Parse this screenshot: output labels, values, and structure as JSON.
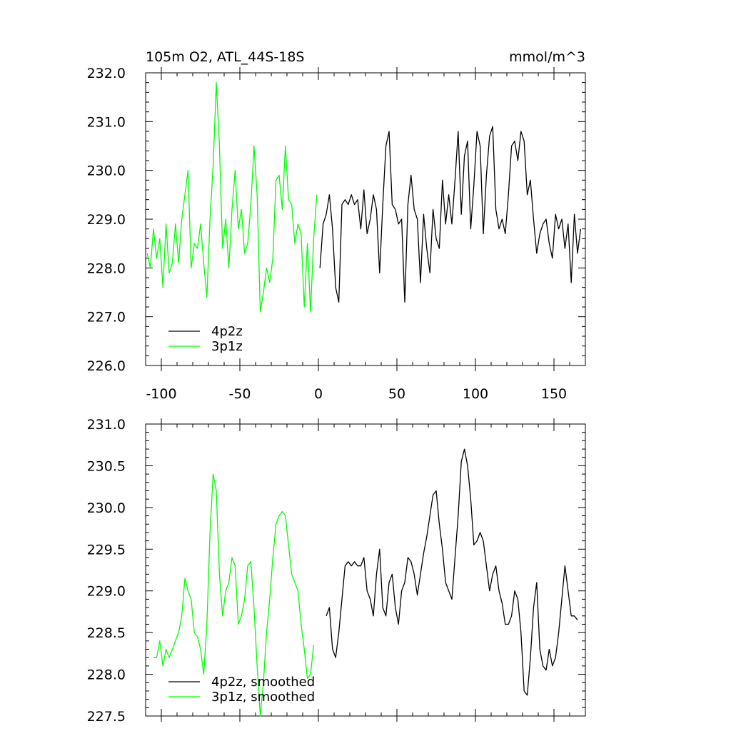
{
  "chart_data": [
    {
      "type": "line",
      "title_left": "105m O2, ATL_44S-18S",
      "title_right": "mmol/m^3",
      "xlim": [
        -110,
        170
      ],
      "ylim": [
        226.0,
        232.0
      ],
      "xticks": [
        -100,
        -50,
        0,
        50,
        100,
        150
      ],
      "xtick_labels": [
        "-100",
        "-50",
        "0",
        "50",
        "100",
        "150"
      ],
      "yticks": [
        226,
        227,
        228,
        229,
        230,
        231,
        232
      ],
      "ytick_labels": [
        "226.0",
        "227.0",
        "228.0",
        "229.0",
        "230.0",
        "231.0",
        "232.0"
      ],
      "legend_position": "bottom-left",
      "series": [
        {
          "name": "4p2z",
          "color": "#000000",
          "x": [
            1,
            3,
            5,
            7,
            9,
            11,
            13,
            15,
            17,
            19,
            21,
            23,
            25,
            27,
            29,
            31,
            33,
            35,
            37,
            39,
            41,
            43,
            45,
            47,
            49,
            51,
            53,
            55,
            57,
            59,
            61,
            63,
            65,
            67,
            69,
            71,
            73,
            75,
            77,
            79,
            81,
            83,
            85,
            87,
            89,
            91,
            93,
            95,
            97,
            99,
            101,
            103,
            105,
            107,
            109,
            111,
            113,
            115,
            117,
            119,
            121,
            123,
            125,
            127,
            129,
            131,
            133,
            135,
            137,
            139,
            141,
            143,
            145,
            147,
            149,
            151,
            153,
            155,
            157,
            159,
            161,
            163,
            165,
            167
          ],
          "values": [
            228.0,
            228.9,
            229.1,
            229.5,
            228.8,
            227.6,
            227.3,
            229.3,
            229.4,
            229.3,
            229.5,
            229.3,
            229.4,
            228.8,
            229.6,
            228.7,
            229.0,
            229.5,
            229.2,
            227.9,
            229.3,
            230.5,
            230.8,
            229.3,
            229.2,
            228.9,
            229.0,
            227.3,
            229.3,
            229.9,
            229.2,
            229.0,
            227.7,
            229.1,
            228.4,
            227.9,
            229.2,
            228.6,
            228.4,
            229.8,
            228.9,
            229.5,
            228.9,
            229.8,
            230.8,
            229.1,
            230.3,
            230.6,
            228.8,
            229.7,
            230.8,
            230.5,
            228.7,
            229.9,
            230.7,
            230.9,
            229.2,
            228.8,
            229.0,
            228.7,
            229.5,
            230.5,
            230.6,
            230.2,
            230.8,
            230.6,
            229.5,
            229.8,
            229.0,
            228.3,
            228.7,
            228.9,
            229.0,
            228.5,
            228.2,
            229.1,
            228.8,
            229.0,
            228.4,
            228.9,
            227.7,
            229.1,
            228.3,
            228.8
          ]
        },
        {
          "name": "3p1z",
          "color": "#00ff00",
          "x": [
            -109,
            -107,
            -105,
            -103,
            -101,
            -99,
            -97,
            -95,
            -93,
            -91,
            -89,
            -87,
            -85,
            -83,
            -81,
            -79,
            -77,
            -75,
            -73,
            -71,
            -69,
            -67,
            -65,
            -63,
            -61,
            -59,
            -57,
            -55,
            -53,
            -51,
            -49,
            -47,
            -45,
            -43,
            -41,
            -39,
            -37,
            -35,
            -33,
            -31,
            -29,
            -27,
            -25,
            -23,
            -21,
            -19,
            -17,
            -15,
            -13,
            -11,
            -9,
            -7,
            -5,
            -3,
            -1
          ],
          "values": [
            228.3,
            228.0,
            228.8,
            228.2,
            228.6,
            227.6,
            228.9,
            227.9,
            228.1,
            228.9,
            228.1,
            229.0,
            229.5,
            230.0,
            228.0,
            228.5,
            228.4,
            228.9,
            228.1,
            227.4,
            229.0,
            230.1,
            231.8,
            230.5,
            228.4,
            229.0,
            228.0,
            229.2,
            230.0,
            228.8,
            229.2,
            228.3,
            228.5,
            229.3,
            230.5,
            229.5,
            227.1,
            227.5,
            228.0,
            227.7,
            228.2,
            229.8,
            229.9,
            229.2,
            230.5,
            229.4,
            229.3,
            228.5,
            228.9,
            228.7,
            227.2,
            228.5,
            227.1,
            228.6,
            229.5
          ]
        }
      ]
    },
    {
      "type": "line",
      "xlim": [
        -110,
        170
      ],
      "ylim": [
        227.5,
        231.0
      ],
      "xticks": [
        -100,
        -50,
        0,
        50,
        100,
        150
      ],
      "yticks": [
        227.5,
        228.0,
        228.5,
        229.0,
        229.5,
        230.0,
        230.5,
        231.0
      ],
      "ytick_labels": [
        "227.5",
        "228.0",
        "228.5",
        "229.0",
        "229.5",
        "230.0",
        "230.5",
        "231.0"
      ],
      "legend_position": "bottom-left",
      "series": [
        {
          "name": "4p2z, smoothed",
          "color": "#000000",
          "x": [
            5,
            7,
            9,
            11,
            13,
            15,
            17,
            19,
            21,
            23,
            25,
            27,
            29,
            31,
            33,
            35,
            37,
            39,
            41,
            43,
            45,
            47,
            49,
            51,
            53,
            55,
            57,
            59,
            61,
            63,
            65,
            67,
            69,
            71,
            73,
            75,
            77,
            79,
            81,
            83,
            85,
            87,
            89,
            91,
            93,
            95,
            97,
            99,
            101,
            103,
            105,
            107,
            109,
            111,
            113,
            115,
            117,
            119,
            121,
            123,
            125,
            127,
            129,
            131,
            133,
            135,
            137,
            139,
            141,
            143,
            145,
            147,
            149,
            151,
            153,
            155,
            157,
            159,
            161,
            163,
            165
          ],
          "values": [
            228.7,
            228.8,
            228.3,
            228.2,
            228.5,
            228.9,
            229.3,
            229.35,
            229.3,
            229.35,
            229.3,
            229.3,
            229.4,
            229.0,
            228.9,
            228.7,
            229.2,
            229.5,
            228.8,
            228.7,
            229.1,
            229.2,
            228.8,
            228.6,
            229.0,
            229.1,
            229.4,
            229.35,
            229.2,
            228.95,
            229.2,
            229.45,
            229.65,
            229.9,
            230.15,
            230.2,
            229.8,
            229.5,
            229.1,
            229.0,
            228.9,
            229.4,
            229.9,
            230.55,
            230.7,
            230.5,
            230.1,
            229.55,
            229.6,
            229.7,
            229.6,
            229.3,
            229.0,
            229.2,
            229.3,
            229.0,
            228.85,
            228.6,
            228.6,
            228.7,
            229.0,
            228.9,
            228.5,
            227.8,
            227.75,
            228.2,
            228.8,
            229.1,
            228.3,
            228.1,
            228.05,
            228.3,
            228.1,
            228.2,
            228.5,
            228.9,
            229.3,
            229.0,
            228.7,
            228.7,
            228.65
          ]
        },
        {
          "name": "3p1z, smoothed",
          "color": "#00ff00",
          "x": [
            -105,
            -103,
            -101,
            -99,
            -97,
            -95,
            -93,
            -91,
            -89,
            -87,
            -85,
            -83,
            -81,
            -79,
            -77,
            -75,
            -73,
            -71,
            -69,
            -67,
            -65,
            -63,
            -61,
            -59,
            -57,
            -55,
            -53,
            -51,
            -49,
            -47,
            -45,
            -43,
            -41,
            -39,
            -37,
            -35,
            -33,
            -31,
            -29,
            -27,
            -25,
            -23,
            -21,
            -19,
            -17,
            -15,
            -13,
            -11,
            -9,
            -7,
            -5,
            -3
          ],
          "values": [
            228.2,
            228.2,
            228.4,
            228.1,
            228.3,
            228.2,
            228.3,
            228.4,
            228.5,
            228.7,
            229.15,
            229.0,
            228.9,
            228.5,
            228.45,
            228.3,
            228.0,
            228.6,
            229.7,
            230.4,
            230.2,
            229.2,
            228.7,
            229.0,
            229.1,
            229.4,
            229.3,
            228.6,
            228.7,
            228.9,
            229.3,
            229.35,
            228.8,
            228.1,
            227.5,
            227.9,
            228.5,
            228.9,
            229.4,
            229.8,
            229.9,
            229.95,
            229.9,
            229.55,
            229.2,
            229.1,
            229.0,
            228.6,
            228.3,
            227.95,
            228.0,
            228.35
          ]
        }
      ]
    }
  ]
}
